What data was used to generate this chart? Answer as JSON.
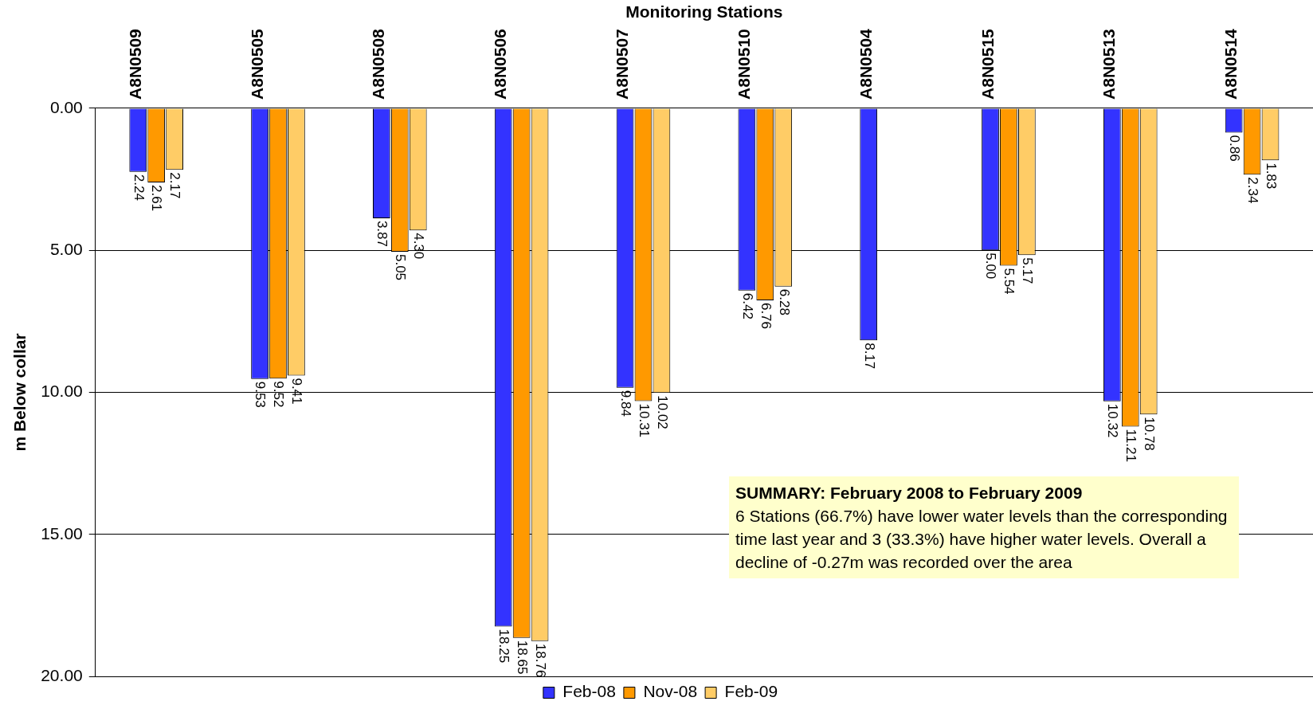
{
  "chart_data": {
    "type": "bar",
    "xlabel": "Monitoring Stations",
    "ylabel": "m Below collar",
    "categories": [
      "A8N0509",
      "A8N0505",
      "A8N0508",
      "A8N0506",
      "A8N0507",
      "A8N0510",
      "A8N0504",
      "A8N0515",
      "A8N0513",
      "A8N0514"
    ],
    "series": [
      {
        "name": "Feb-08",
        "color": "#3333ff",
        "values": [
          2.24,
          9.53,
          3.87,
          18.25,
          9.84,
          6.42,
          8.17,
          5.0,
          10.32,
          0.86
        ],
        "value_labels": [
          "2.24",
          "9.53",
          "3.87",
          "18.25",
          "9.84",
          "6.42",
          "8.17",
          "5.00",
          "10.32",
          "0.86"
        ]
      },
      {
        "name": "Nov-08",
        "color": "#ff9900",
        "values": [
          2.61,
          9.52,
          5.05,
          18.65,
          10.31,
          6.76,
          null,
          5.54,
          11.21,
          2.34
        ],
        "value_labels": [
          "2.61",
          "9.52",
          "5.05",
          "18.65",
          "10.31",
          "6.76",
          null,
          "5.54",
          "11.21",
          "2.34"
        ]
      },
      {
        "name": "Feb-09",
        "color": "#ffcc66",
        "values": [
          2.17,
          9.41,
          4.3,
          18.76,
          10.02,
          6.28,
          null,
          5.17,
          10.78,
          1.83
        ],
        "value_labels": [
          "2.17",
          "9.41",
          "4.30",
          "18.76",
          "10.02",
          "6.28",
          null,
          "5.17",
          "10.78",
          "1.83"
        ]
      }
    ],
    "ylim": [
      20,
      0
    ],
    "yticks": [
      {
        "value": 0,
        "label": "0.00"
      },
      {
        "value": 5,
        "label": "5.00"
      },
      {
        "value": 10,
        "label": "10.00"
      },
      {
        "value": 15,
        "label": "15.00"
      },
      {
        "value": 20,
        "label": "20.00"
      }
    ],
    "grid": "y",
    "legend": "bottom",
    "annotations": [
      "SUMMARY: February 2008 to February 2009",
      "6 Stations  (66.7%) have lower water  levels than the corresponding time last year and 3  (33.3%) have  higher water levels. Overall a decline of -0.27m was recorded over the area"
    ]
  }
}
